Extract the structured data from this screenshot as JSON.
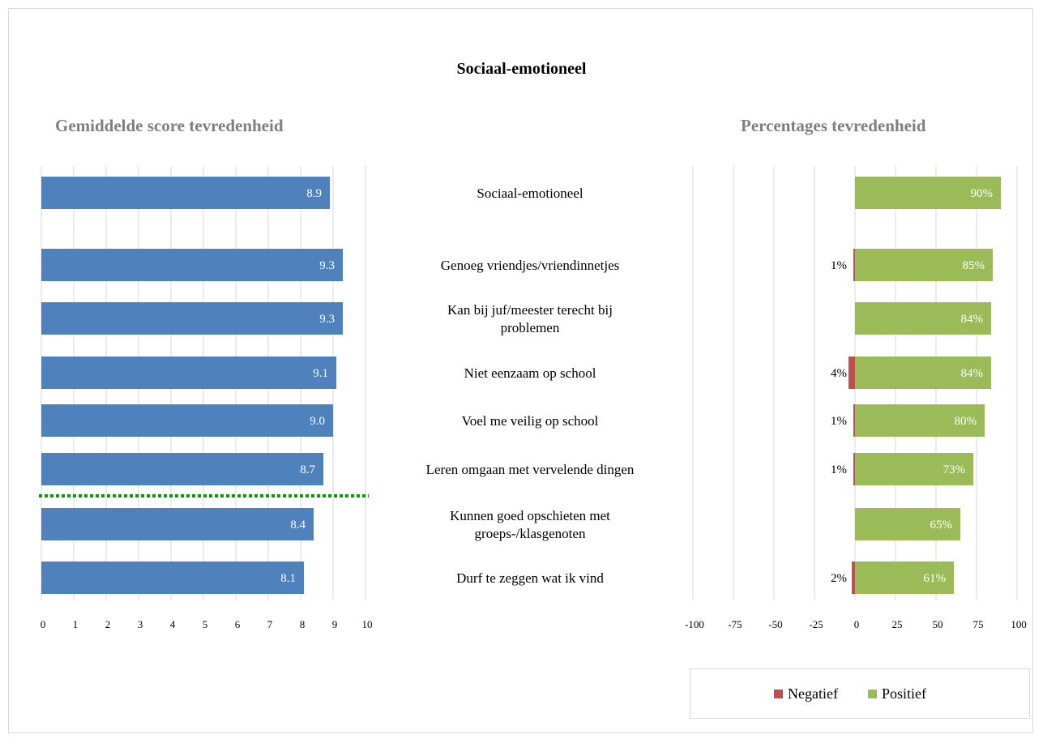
{
  "title": "Sociaal-emotioneel",
  "colors": {
    "score_bar": "#4f81bd",
    "negative": "#c0504d",
    "positive": "#9bbb59",
    "reference_line": "#00a000",
    "grid": "#d9d9d9"
  },
  "chart_data": [
    {
      "type": "bar",
      "orientation": "horizontal",
      "title": "Gemiddelde score tevredenheid",
      "categories": [
        "Sociaal-emotioneel",
        "Genoeg vriendjes/vriendinnetjes",
        "Kan bij juf/meester terecht bij problemen",
        "Niet eenzaam op school",
        "Voel me veilig op school",
        "Leren omgaan met vervelende dingen",
        "Kunnen goed opschieten met groeps-/klasgenoten",
        "Durf te zeggen wat ik vind"
      ],
      "values": [
        8.9,
        9.3,
        9.3,
        9.1,
        9.0,
        8.7,
        8.4,
        8.1
      ],
      "data_labels": [
        "8.9",
        "9.3",
        "9.3",
        "9.1",
        "9.0",
        "8.7",
        "8.4",
        "8.1"
      ],
      "xlim": [
        0,
        10
      ],
      "ticks": [
        0,
        1,
        2,
        3,
        4,
        5,
        6,
        7,
        8,
        9,
        10
      ],
      "reference_line": {
        "orientation": "horizontal",
        "between_categories": [
          5,
          6
        ],
        "style": "dotted"
      },
      "grid": true
    },
    {
      "type": "bar",
      "orientation": "horizontal",
      "stacked": true,
      "title": "Percentages tevredenheid",
      "categories": [
        "Sociaal-emotioneel",
        "Genoeg vriendjes/vriendinnetjes",
        "Kan bij juf/meester terecht bij problemen",
        "Niet eenzaam op school",
        "Voel me veilig op school",
        "Leren omgaan met vervelende dingen",
        "Kunnen goed opschieten met groeps-/klasgenoten",
        "Durf te zeggen wat ik vind"
      ],
      "series": [
        {
          "name": "Negatief",
          "values": [
            0,
            -1,
            0,
            -4,
            -1,
            -1,
            0,
            -2
          ],
          "data_labels": [
            "",
            "1%",
            "",
            "4%",
            "1%",
            "1%",
            "",
            "2%"
          ]
        },
        {
          "name": "Positief",
          "values": [
            90,
            85,
            84,
            84,
            80,
            73,
            65,
            61
          ],
          "data_labels": [
            "90%",
            "85%",
            "84%",
            "84%",
            "80%",
            "73%",
            "65%",
            "61%"
          ]
        }
      ],
      "xlim": [
        -100,
        100
      ],
      "ticks": [
        -100,
        -75,
        -50,
        -25,
        0,
        25,
        50,
        75,
        100
      ],
      "legend": "bottom",
      "grid": true
    }
  ],
  "legend": {
    "negative_label": "Negatief",
    "positive_label": "Positief"
  }
}
